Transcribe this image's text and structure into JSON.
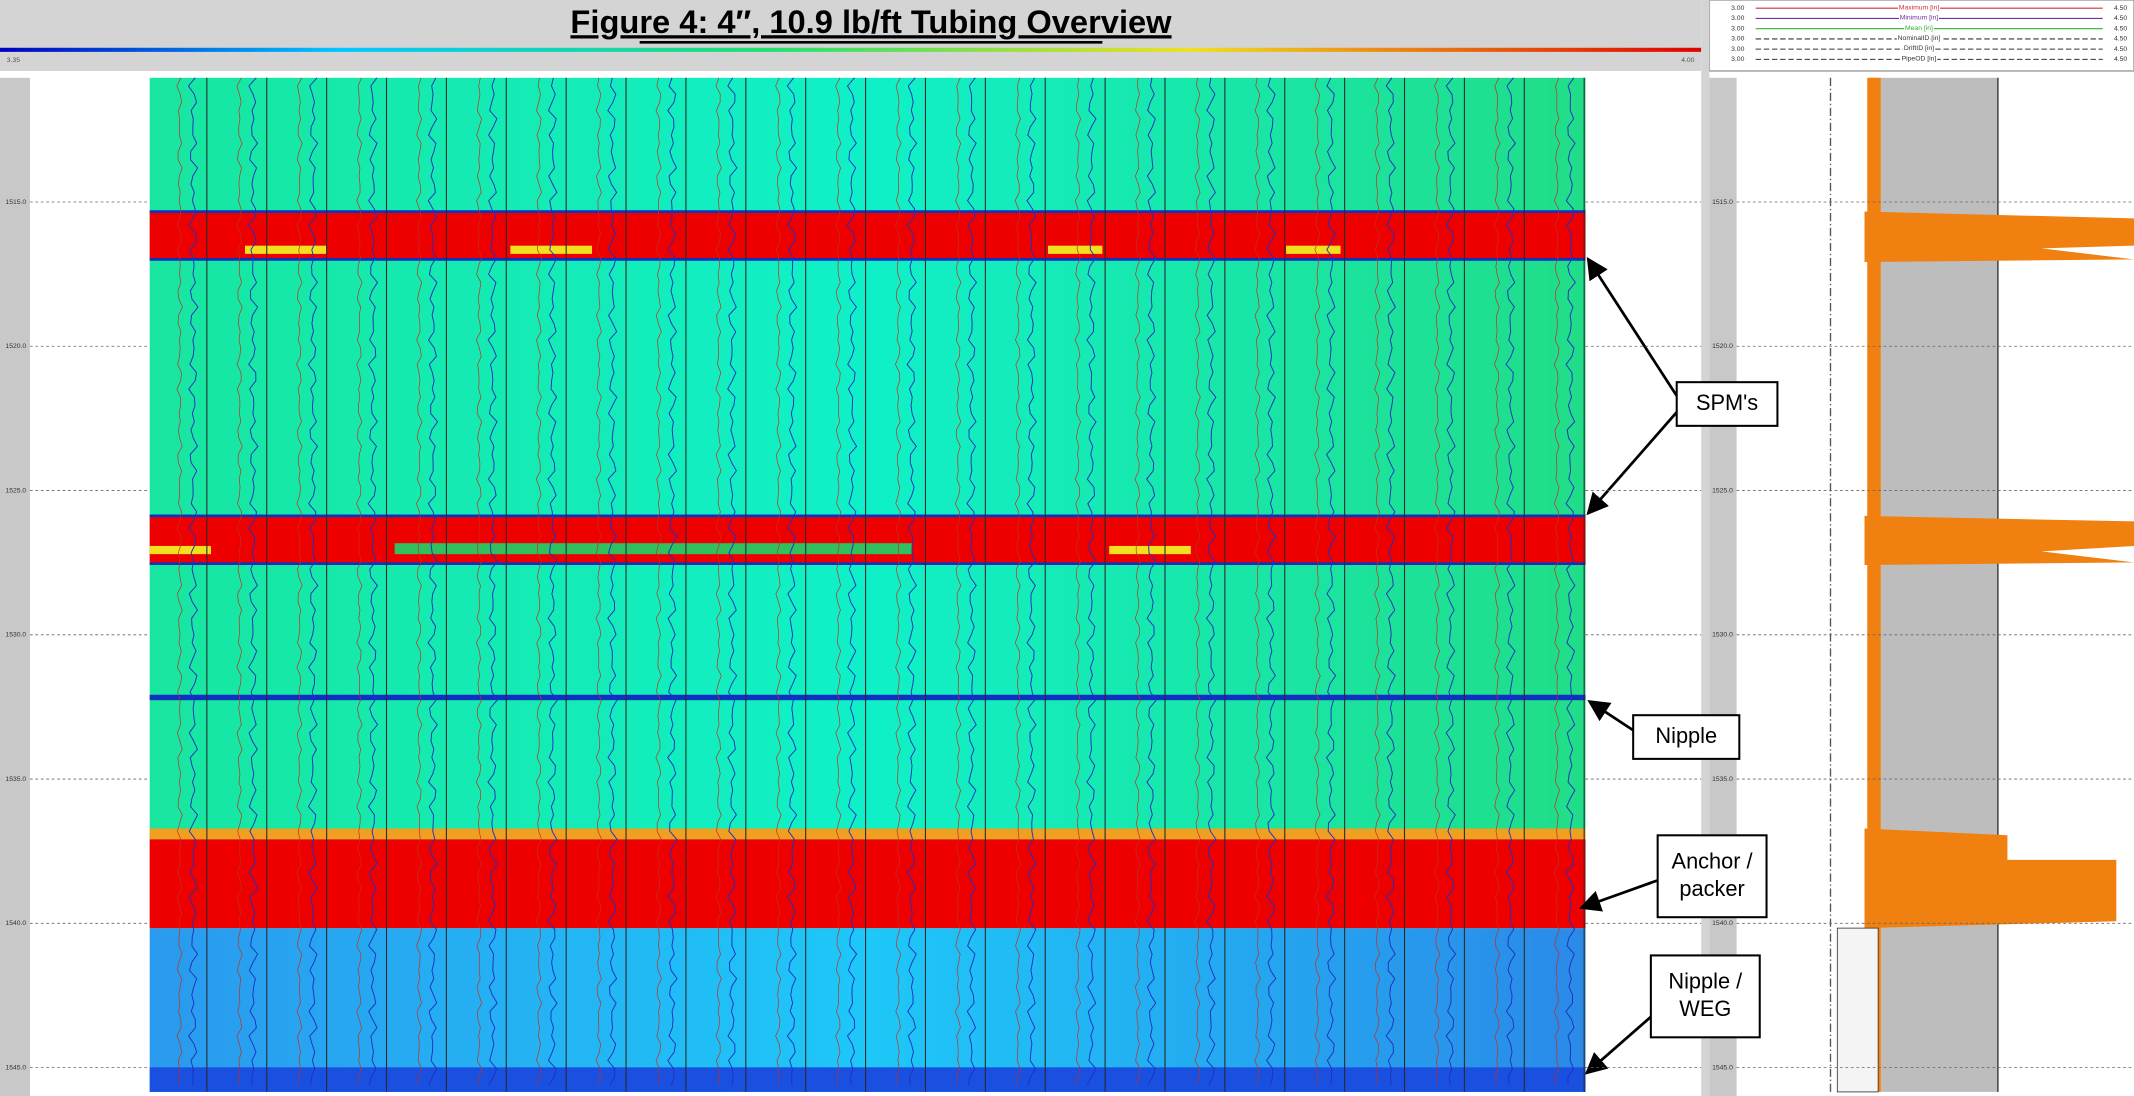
{
  "figure": {
    "title": "Figure 4: 4″, 10.9 lb/ft Tubing Overview",
    "scale_min": "3.35",
    "scale_max": "4.00",
    "depths": [
      "1515.0",
      "1520.0",
      "1525.0",
      "1530.0",
      "1535.0",
      "1540.0",
      "1545.0"
    ],
    "legend": [
      {
        "left": "3.00",
        "name": "Maximum [in]",
        "right": "4.50"
      },
      {
        "left": "3.00",
        "name": "Minimum [in]",
        "right": "4.50"
      },
      {
        "left": "3.00",
        "name": "Mean [in]",
        "right": "4.50"
      },
      {
        "left": "3.00",
        "name": "NominalID [in]",
        "right": "4.50"
      },
      {
        "left": "3.00",
        "name": "DriftID [in]",
        "right": "4.50"
      },
      {
        "left": "3.00",
        "name": "PipeOD [in]",
        "right": "4.50"
      }
    ],
    "annotations": [
      "SPM's",
      "Nipple",
      "Anchor /\npacker",
      "Nipple /\nWEG"
    ]
  }
}
